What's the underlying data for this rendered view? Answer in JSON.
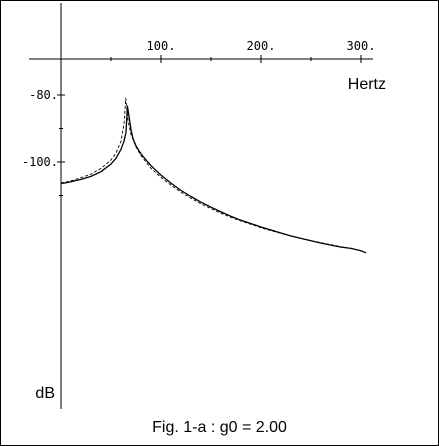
{
  "caption": "Fig. 1-a : g0 = 2.00",
  "chart_data": {
    "type": "line",
    "xlabel": "Hertz",
    "ylabel": "dB",
    "xlim": [
      -5,
      320
    ],
    "ylim": [
      -136.2,
      -73.4
    ],
    "x_ticks": [
      {
        "value": 100,
        "label": "100."
      },
      {
        "value": 200,
        "label": "200."
      },
      {
        "value": 300,
        "label": "300."
      }
    ],
    "y_ticks": [
      {
        "value": -80,
        "label": "-80."
      },
      {
        "value": -100,
        "label": "-100."
      }
    ],
    "x_minor_ticks": [
      50,
      150,
      250
    ],
    "y_minor_ticks": [
      -90,
      -110
    ],
    "grid": false,
    "series": [
      {
        "style": "solid",
        "x": [
          0,
          5,
          10,
          20,
          30,
          40,
          50,
          55,
          60,
          63,
          65,
          66.4,
          68,
          70,
          72,
          75,
          80,
          90,
          100,
          110,
          120,
          130,
          140,
          150,
          160,
          170,
          180,
          190,
          200,
          210,
          220,
          230,
          240,
          250,
          260,
          270,
          280,
          290,
          300,
          305
        ],
        "y": [
          -106.4,
          -106.2,
          -105.9,
          -105.2,
          -104.3,
          -102.9,
          -100.6,
          -98.9,
          -96.2,
          -93.8,
          -91.2,
          -83.3,
          -86.3,
          -90.3,
          -93.0,
          -95.2,
          -97.6,
          -101.1,
          -103.9,
          -106.3,
          -108.5,
          -110.3,
          -112.0,
          -113.5,
          -114.9,
          -116.2,
          -117.4,
          -118.4,
          -119.4,
          -120.3,
          -121.2,
          -122.1,
          -122.8,
          -123.5,
          -124.2,
          -124.8,
          -125.4,
          -125.8,
          -126.5,
          -127.1
        ]
      },
      {
        "style": "dashed",
        "x": [
          0,
          5,
          10,
          20,
          30,
          40,
          50,
          55,
          60,
          63,
          64.8,
          67,
          70,
          75,
          80,
          90,
          100,
          110,
          120,
          130,
          140,
          150,
          160,
          170,
          180,
          190,
          200,
          210,
          220,
          230,
          240,
          250,
          260,
          270,
          280,
          290,
          300,
          305
        ],
        "y": [
          -106.2,
          -106.0,
          -105.6,
          -104.7,
          -103.6,
          -101.9,
          -99.4,
          -97.3,
          -93.8,
          -88.7,
          -81.0,
          -87.6,
          -91.8,
          -95.5,
          -98.1,
          -101.9,
          -104.6,
          -106.9,
          -109.0,
          -110.8,
          -112.5,
          -113.9,
          -115.3,
          -116.5,
          -117.6,
          -118.6,
          -119.6,
          -120.5,
          -121.3,
          -122.1,
          -122.8,
          -123.5,
          -124.1,
          -124.7,
          -125.3,
          -125.8,
          -126.5,
          -127.0
        ]
      }
    ]
  }
}
